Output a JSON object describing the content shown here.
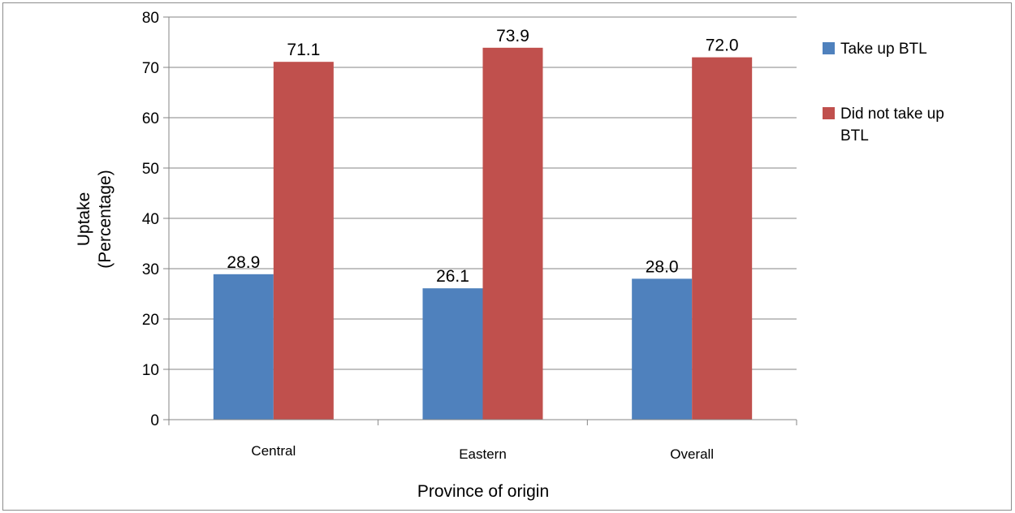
{
  "chart_data": {
    "type": "bar",
    "categories": [
      "Central",
      "Eastern",
      "Overall"
    ],
    "series": [
      {
        "name": "Take up BTL",
        "values": [
          28.9,
          26.1,
          28.0
        ],
        "labels": [
          "28.9",
          "26.1",
          "28.0"
        ],
        "color": "#4f81bd"
      },
      {
        "name": "Did not take up BTL",
        "values": [
          71.1,
          73.9,
          72.0
        ],
        "labels": [
          "71.1",
          "73.9",
          "72.0"
        ],
        "color": "#c0504d"
      }
    ],
    "xlabel": "Province of origin",
    "ylabel_lines": [
      "Uptake",
      "(Percentage)"
    ],
    "ylim": [
      0,
      80
    ],
    "yticks": [
      "0",
      "10",
      "20",
      "30",
      "40",
      "50",
      "60",
      "70",
      "80"
    ],
    "grid": true,
    "legend_position": "right",
    "legend_lines": [
      [
        "Take up BTL"
      ],
      [
        "Did not take up",
        "BTL"
      ]
    ]
  }
}
